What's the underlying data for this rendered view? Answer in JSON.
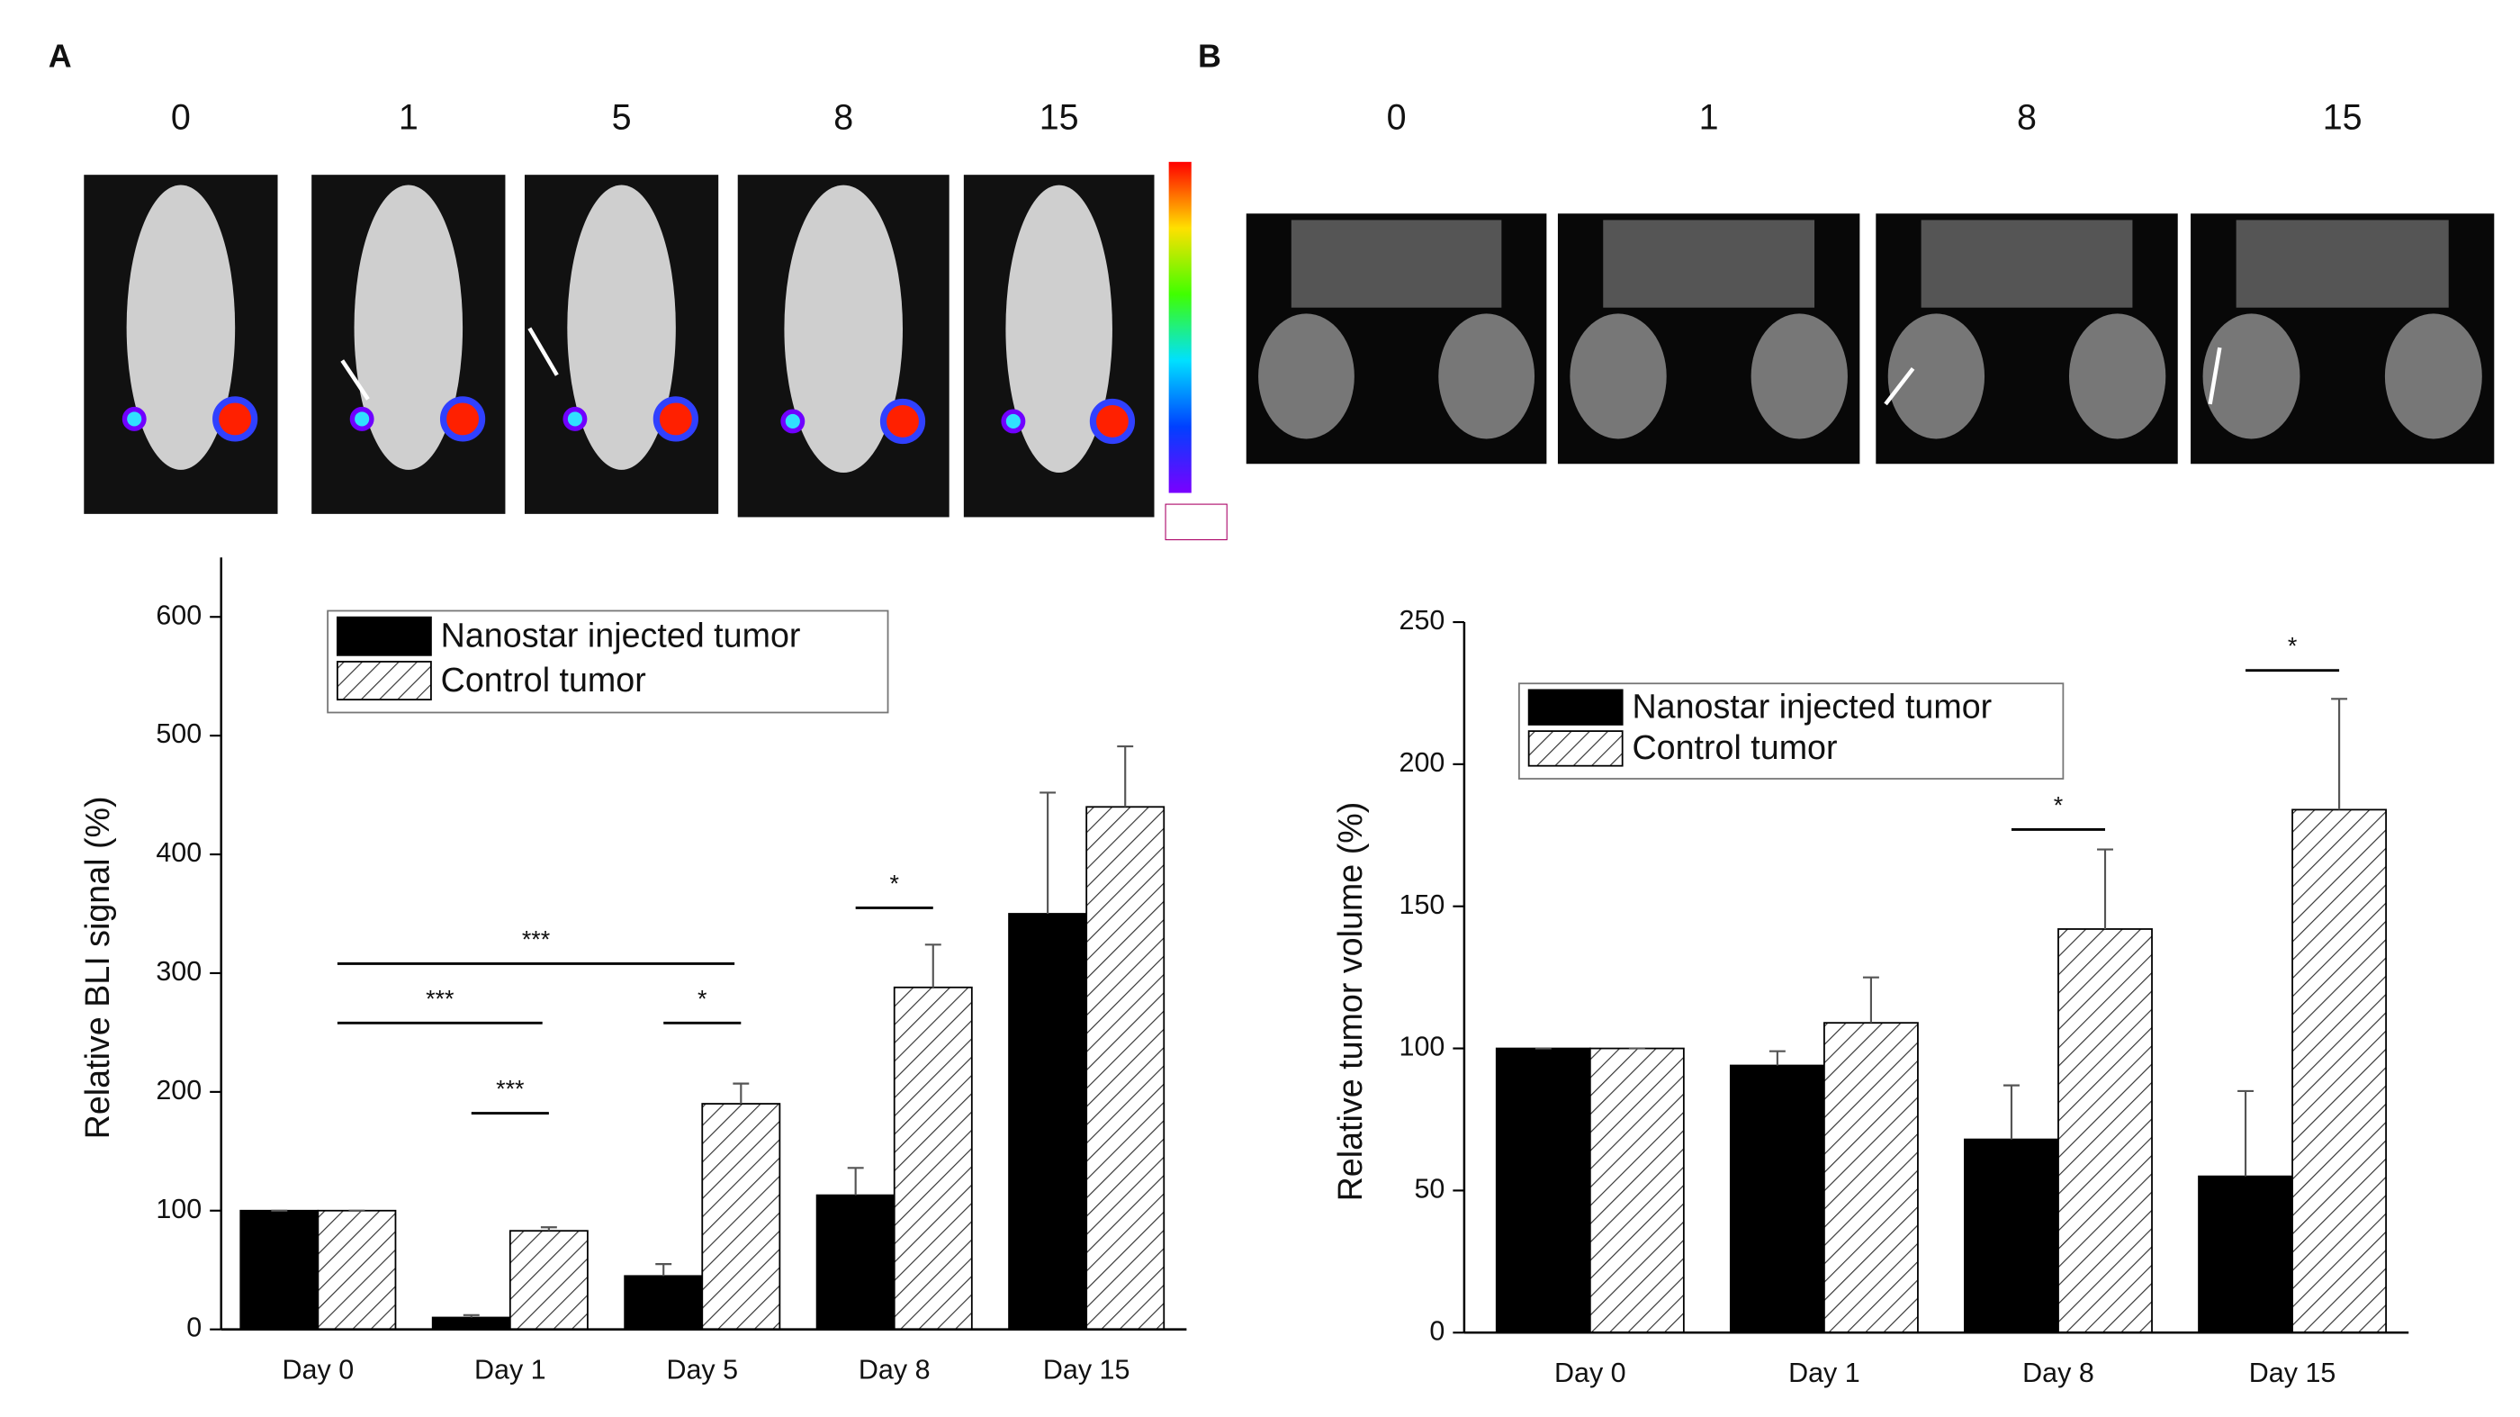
{
  "panels": [
    {
      "label": "A",
      "image_labels": [
        "0",
        "1",
        "5",
        "8",
        "15"
      ]
    },
    {
      "label": "B",
      "image_labels": [
        "0",
        "1",
        "8",
        "15"
      ]
    }
  ],
  "chart_data": [
    {
      "type": "bar",
      "ylabel": "Relative BLI signal (%)",
      "categories": [
        "Day 0",
        "Day 1",
        "Day 5",
        "Day 8",
        "Day 15"
      ],
      "series": [
        {
          "name": "Nanostar injected tumor",
          "color": "#000000",
          "hatch": false,
          "values": [
            100,
            10,
            45,
            113,
            350
          ],
          "errors": [
            0,
            2,
            10,
            23,
            102
          ]
        },
        {
          "name": "Control tumor",
          "color": "#000000",
          "hatch": true,
          "values": [
            100,
            83,
            190,
            288,
            440
          ],
          "errors": [
            0,
            3,
            17,
            36,
            51
          ]
        }
      ],
      "ylim": [
        0,
        650
      ],
      "yticks": [
        0,
        100,
        200,
        300,
        400,
        500,
        600
      ],
      "legend": "top",
      "annotations": [
        {
          "text": "***",
          "y": 308,
          "from": 0,
          "to": 2
        },
        {
          "text": "***",
          "y": 258,
          "from": 0,
          "to": 1
        },
        {
          "text": "***",
          "y": 182,
          "from": 1,
          "to": 1
        },
        {
          "text": "*",
          "y": 258,
          "from": 2,
          "to": 2
        },
        {
          "text": "*",
          "y": 355,
          "from": 3,
          "to": 3
        }
      ]
    },
    {
      "type": "bar",
      "ylabel": "Relative tumor volume (%)",
      "categories": [
        "Day 0",
        "Day 1",
        "Day 8",
        "Day 15"
      ],
      "series": [
        {
          "name": "Nanostar injected tumor",
          "color": "#000000",
          "hatch": false,
          "values": [
            100,
            94,
            68,
            55
          ],
          "errors": [
            0,
            5,
            19,
            30
          ]
        },
        {
          "name": "Control tumor",
          "color": "#000000",
          "hatch": true,
          "values": [
            100,
            109,
            142,
            184
          ],
          "errors": [
            0,
            16,
            28,
            39
          ]
        }
      ],
      "ylim": [
        0,
        250
      ],
      "yticks": [
        0,
        50,
        100,
        150,
        200,
        250
      ],
      "legend": "top left",
      "annotations": [
        {
          "text": "*",
          "y": 177,
          "from": 2,
          "to": 2
        },
        {
          "text": "*",
          "y": 233,
          "from": 3,
          "to": 3
        }
      ]
    }
  ]
}
